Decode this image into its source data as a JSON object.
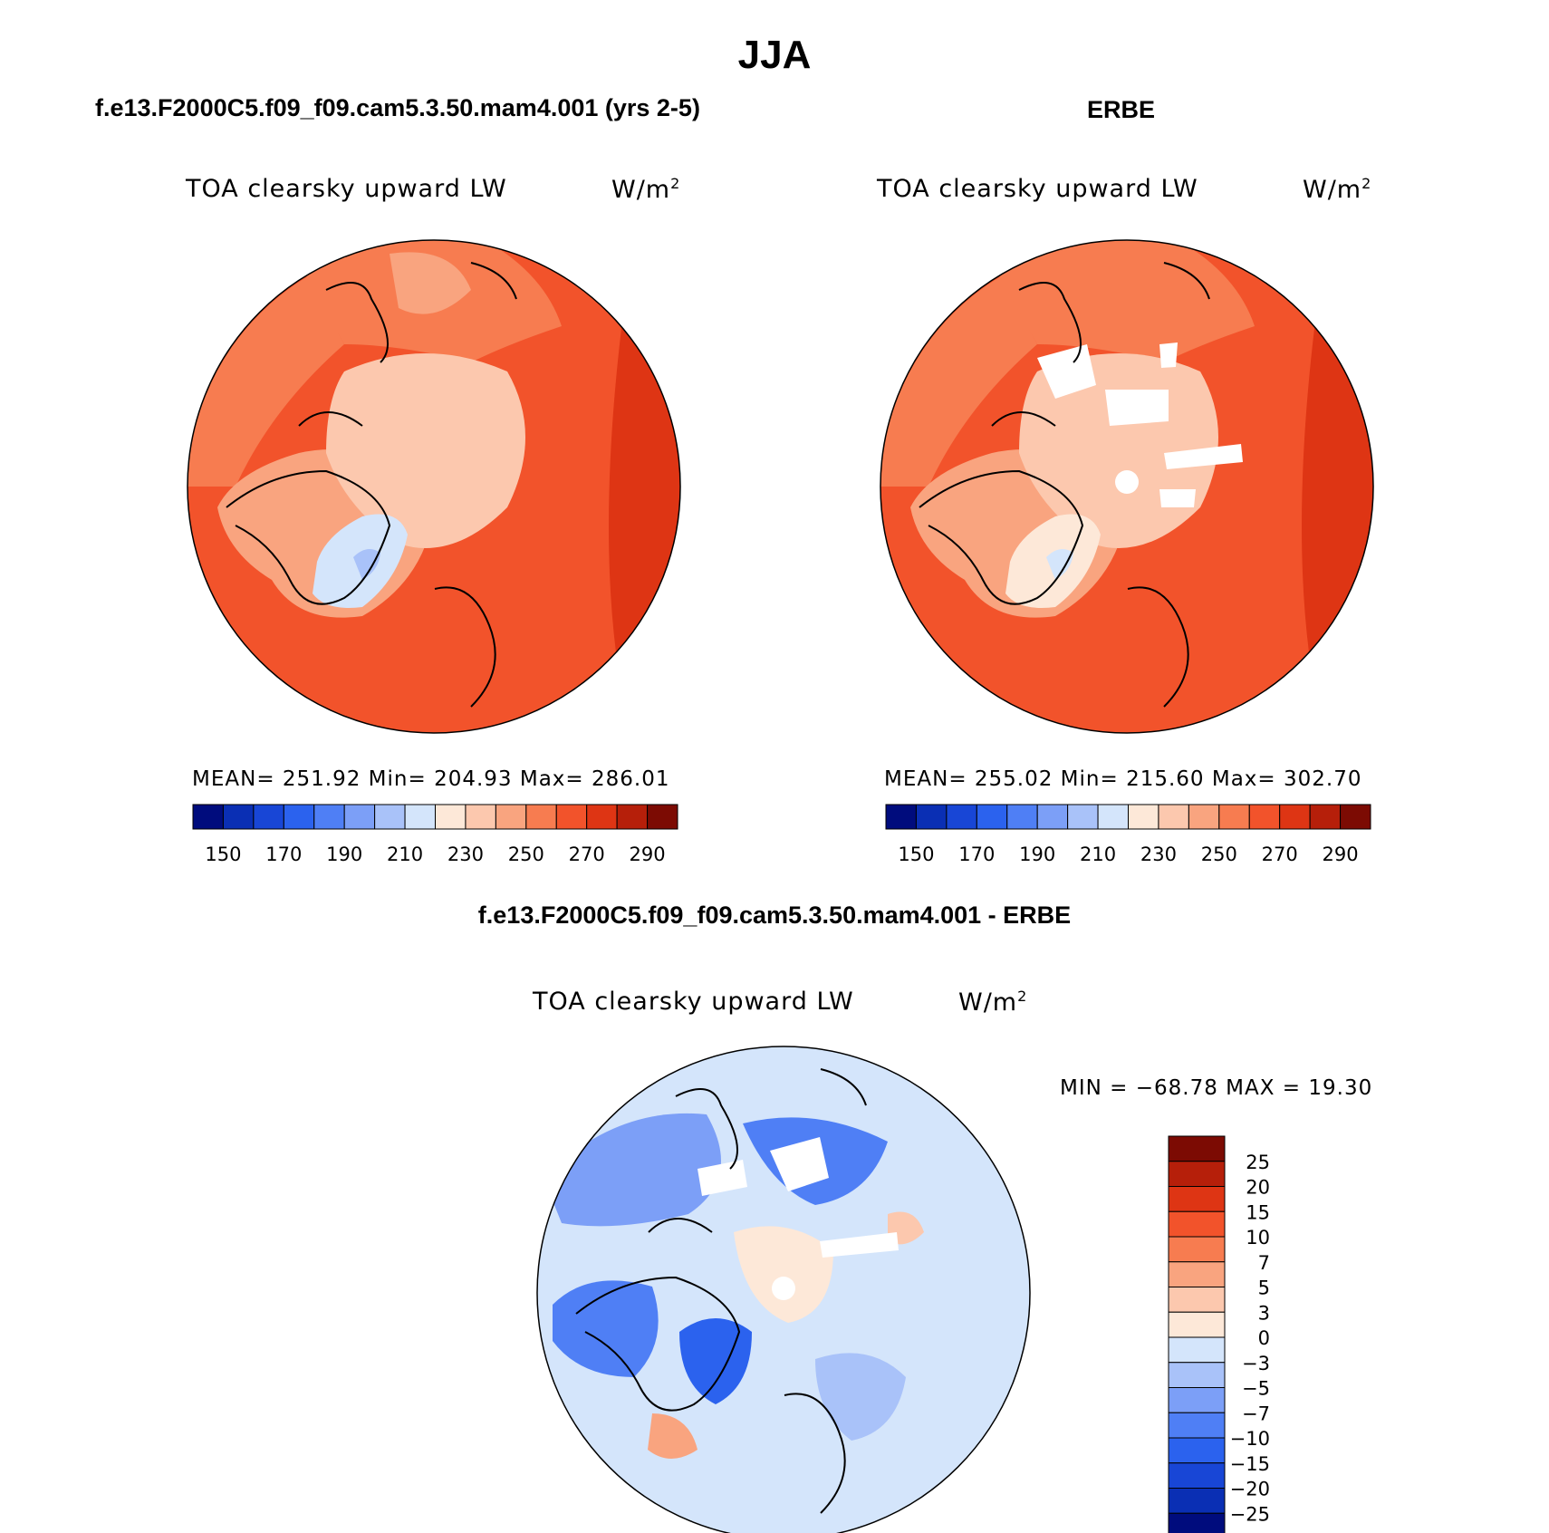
{
  "title": "JJA",
  "colors": {
    "abs_scale": [
      "#000c7d",
      "#0a2fb4",
      "#1846d6",
      "#2b62ee",
      "#4f7ff5",
      "#7c9ff7",
      "#a9c2f9",
      "#d4e5fb",
      "#fde8d8",
      "#fcc8ae",
      "#f9a47f",
      "#f77c50",
      "#f2532b",
      "#de3514",
      "#b61f0a",
      "#7c0b03"
    ],
    "diff_scale": [
      "#000c7d",
      "#0a2fb4",
      "#1846d6",
      "#2b62ee",
      "#4f7ff5",
      "#7c9ff7",
      "#a9c2f9",
      "#d4e5fb",
      "#fde8d8",
      "#fcc8ae",
      "#f9a47f",
      "#f77c50",
      "#f2532b",
      "#de3514",
      "#b61f0a",
      "#7c0b03"
    ]
  },
  "panels": {
    "model": {
      "title": "f.e13.F2000C5.f09_f09.cam5.3.50.mam4.001 (yrs 2-5)",
      "variable": "TOA clearsky upward LW",
      "units": "W/m",
      "units_sup": "2",
      "stats": "MEAN= 251.92   Min= 204.93   Max= 286.01"
    },
    "obs": {
      "title": "ERBE",
      "variable": "TOA clearsky upward LW",
      "units": "W/m",
      "units_sup": "2",
      "stats": "MEAN= 255.02   Min= 215.60   Max= 302.70"
    },
    "diff": {
      "title": "f.e13.F2000C5.f09_f09.cam5.3.50.mam4.001 - ERBE",
      "variable": "TOA clearsky upward LW",
      "units": "W/m",
      "units_sup": "2",
      "stats": "MIN = −68.78 MAX =   19.30"
    }
  },
  "chart_data": [
    {
      "type": "heatmap",
      "projection": "north-polar-stereographic",
      "title": "f.e13.F2000C5.f09_f09.cam5.3.50.mam4.001 (yrs 2-5)",
      "variable": "TOA clearsky upward LW",
      "units": "W/m2",
      "mean": 251.92,
      "min": 204.93,
      "max": 286.01,
      "colorbar_ticks": [
        "150",
        "170",
        "190",
        "210",
        "230",
        "250",
        "270",
        "290"
      ],
      "colorbar_levels": 16
    },
    {
      "type": "heatmap",
      "projection": "north-polar-stereographic",
      "title": "ERBE",
      "variable": "TOA clearsky upward LW",
      "units": "W/m2",
      "mean": 255.02,
      "min": 215.6,
      "max": 302.7,
      "colorbar_ticks": [
        "150",
        "170",
        "190",
        "210",
        "230",
        "250",
        "270",
        "290"
      ],
      "colorbar_levels": 16
    },
    {
      "type": "heatmap",
      "projection": "north-polar-stereographic",
      "title": "f.e13.F2000C5.f09_f09.cam5.3.50.mam4.001 - ERBE",
      "variable": "TOA clearsky upward LW",
      "units": "W/m2",
      "min": -68.78,
      "max": 19.3,
      "colorbar_ticks": [
        "25",
        "20",
        "15",
        "10",
        "7",
        "5",
        "3",
        "0",
        "−3",
        "−5",
        "−7",
        "−10",
        "−15",
        "−20",
        "−25"
      ],
      "colorbar_levels": 16
    }
  ]
}
